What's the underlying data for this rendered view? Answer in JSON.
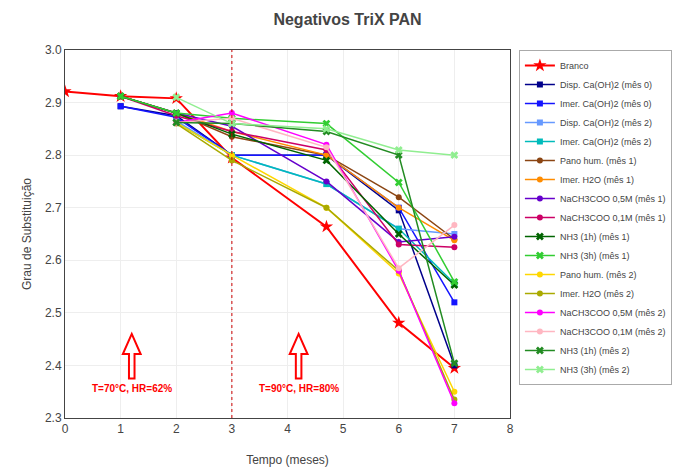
{
  "chart_data": {
    "type": "line",
    "title": "Negativos TriX PAN",
    "xlabel": "Tempo (meses)",
    "ylabel": "Grau de Substituição",
    "xlim": [
      0,
      8
    ],
    "ylim": [
      2.3,
      3.0
    ],
    "xticks": [
      0,
      1,
      2,
      3,
      4,
      5,
      6,
      7,
      8
    ],
    "yticks": [
      2.3,
      2.4,
      2.5,
      2.6,
      2.7,
      2.8,
      2.9,
      {
        "value": 3.0,
        "label": "3.0"
      }
    ],
    "grid": true,
    "legend": "right",
    "vlines": [
      {
        "x": 3,
        "color": "#CC0000",
        "line_style": "dotted"
      }
    ],
    "annotations": [
      {
        "text": "T=70°C, HR=62%",
        "x": 1.2,
        "y_base": 2.375,
        "y_tip": 2.46,
        "color": "red"
      },
      {
        "text": "T=90°C, HR=80%",
        "x": 4.2,
        "y_base": 2.375,
        "y_tip": 2.46,
        "color": "red"
      }
    ],
    "series": [
      {
        "name": "Branco",
        "color": "#FF0000",
        "marker": "star",
        "x": [
          0,
          1,
          2,
          3,
          4.7,
          6,
          7
        ],
        "values": [
          2.921,
          2.912,
          2.908,
          2.795,
          2.664,
          2.481,
          2.395
        ]
      },
      {
        "name": "Disp. Ca(OH)2 (mês 0)",
        "color": "#00008B",
        "marker": "square",
        "x": [
          1,
          2,
          3,
          4.7,
          6,
          7
        ],
        "values": [
          2.893,
          2.875,
          2.8,
          2.8,
          2.695,
          2.4
        ]
      },
      {
        "name": "Imer. Ca(OH)2 (mês 0)",
        "color": "#1414FF",
        "marker": "square",
        "x": [
          1,
          2,
          3,
          4.7,
          6,
          7
        ],
        "values": [
          2.893,
          2.872,
          2.8,
          2.8,
          2.7,
          2.52
        ]
      },
      {
        "name": "Disp. Ca(OH)2 (mês 2)",
        "color": "#6699FF",
        "marker": "square",
        "x": [
          2,
          3,
          4.7,
          6,
          7
        ],
        "values": [
          2.865,
          2.8,
          2.745,
          2.66,
          2.65
        ]
      },
      {
        "name": "Imer. Ca(OH)2 (mês 2)",
        "color": "#00BBBB",
        "marker": "square",
        "x": [
          2,
          3,
          4.7,
          6,
          7
        ],
        "values": [
          2.862,
          2.8,
          2.745,
          2.66,
          2.556
        ]
      },
      {
        "name": "Pano hum. (mês 1)",
        "color": "#8B4513",
        "marker": "circle",
        "x": [
          1,
          2,
          3,
          4.7,
          6,
          7
        ],
        "values": [
          2.912,
          2.88,
          2.835,
          2.8,
          2.72,
          2.64
        ]
      },
      {
        "name": "Imer. H2O (mês 1)",
        "color": "#FF8C00",
        "marker": "circle",
        "x": [
          1,
          2,
          3,
          4.7,
          6,
          7
        ],
        "values": [
          2.912,
          2.88,
          2.845,
          2.8,
          2.7,
          2.638
        ]
      },
      {
        "name": "NaCH3COO 0,5M (mês 1)",
        "color": "#6600CC",
        "marker": "circle",
        "x": [
          1,
          2,
          3,
          4.7,
          6,
          7
        ],
        "values": [
          2.912,
          2.88,
          2.855,
          2.75,
          2.635,
          2.645
        ]
      },
      {
        "name": "NaCH3COO 0,1M (mês 1)",
        "color": "#CC0066",
        "marker": "circle",
        "x": [
          1,
          2,
          3,
          4.7,
          6,
          7
        ],
        "values": [
          2.912,
          2.875,
          2.845,
          2.81,
          2.63,
          2.625
        ]
      },
      {
        "name": "NH3 (1h) (mês 1)",
        "color": "#006400",
        "marker": "x",
        "x": [
          1,
          2,
          3,
          4.7,
          6,
          7
        ],
        "values": [
          2.912,
          2.88,
          2.84,
          2.79,
          2.65,
          2.553
        ]
      },
      {
        "name": "NH3 (3h) (mês 1)",
        "color": "#32CD32",
        "marker": "x",
        "x": [
          1,
          2,
          3,
          4.7,
          6,
          7
        ],
        "values": [
          2.912,
          2.88,
          2.87,
          2.86,
          2.748,
          2.559
        ]
      },
      {
        "name": "Pano hum. (mês 2)",
        "color": "#FFD700",
        "marker": "circle",
        "x": [
          2,
          3,
          4.7,
          6,
          7
        ],
        "values": [
          2.862,
          2.8,
          2.7,
          2.575,
          2.35
        ]
      },
      {
        "name": "Imer. H2O (mês 2)",
        "color": "#AAAA00",
        "marker": "circle",
        "x": [
          2,
          3,
          4.7,
          6,
          7
        ],
        "values": [
          2.86,
          2.79,
          2.7,
          2.58,
          2.335
        ]
      },
      {
        "name": "NaCH3COO 0,5M (mês 2)",
        "color": "#FF00FF",
        "marker": "circle",
        "x": [
          2,
          3,
          4.7,
          6,
          7
        ],
        "values": [
          2.862,
          2.88,
          2.82,
          2.58,
          2.328
        ]
      },
      {
        "name": "NaCH3COO 0,1M (mês 2)",
        "color": "#FFB6C1",
        "marker": "circle",
        "x": [
          2,
          3,
          4.7,
          6,
          7
        ],
        "values": [
          2.862,
          2.87,
          2.815,
          2.585,
          2.667
        ]
      },
      {
        "name": "NH3 (1h) (mês 2)",
        "color": "#228B22",
        "marker": "x",
        "x": [
          2,
          3,
          4.7,
          6,
          7
        ],
        "values": [
          2.862,
          2.86,
          2.845,
          2.8,
          2.404
        ]
      },
      {
        "name": "NH3 (3h) (mês 2)",
        "color": "#90EE90",
        "marker": "x",
        "x": [
          2,
          3,
          4.7,
          6,
          7
        ],
        "values": [
          2.91,
          2.86,
          2.85,
          2.81,
          2.8
        ]
      }
    ]
  }
}
